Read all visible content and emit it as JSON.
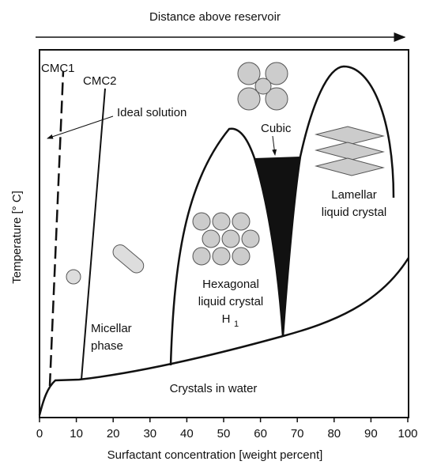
{
  "header": {
    "title": "Distance above reservoir"
  },
  "axes": {
    "x_label": "Surfactant concentration [weight percent]",
    "y_label": "Temperature [° C]",
    "x_ticks": [
      "0",
      "10",
      "20",
      "30",
      "40",
      "50",
      "60",
      "70",
      "80",
      "90",
      "100"
    ]
  },
  "labels": {
    "cmc1": "CMC1",
    "cmc2": "CMC2",
    "ideal": "Ideal solution",
    "cubic": "Cubic",
    "lamellar": [
      "Lamellar",
      "liquid crystal"
    ],
    "hexagonal": [
      "Hexagonal",
      "liquid crystal"
    ],
    "h1": {
      "base": "H",
      "sub": "1"
    },
    "micellar": [
      "Micellar",
      "phase"
    ],
    "crystals": "Crystals in water"
  }
}
